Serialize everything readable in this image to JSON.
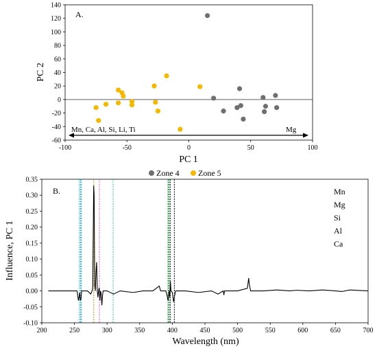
{
  "chart_data": [
    {
      "type": "scatter",
      "panel_label": "A.",
      "xlabel": "PC 1",
      "ylabel": "PC 2",
      "xlim": [
        -100,
        100
      ],
      "ylim": [
        -60,
        140
      ],
      "x_ticks": [
        -100,
        -50,
        0,
        50,
        100
      ],
      "y_ticks": [
        -60,
        -40,
        -20,
        0,
        20,
        40,
        60,
        80,
        100,
        120,
        140
      ],
      "grid": false,
      "legend_position": "bottom",
      "annotation_arrow": {
        "left_text": "Mn, Ca, Al, Si, Li, Ti",
        "right_text": "Mg"
      },
      "series": [
        {
          "name": "Zone 4",
          "color": "#6f6f6f",
          "points": [
            [
              15,
              124
            ],
            [
              20,
              2
            ],
            [
              28,
              -17
            ],
            [
              39,
              -12
            ],
            [
              41,
              16
            ],
            [
              42,
              -9
            ],
            [
              44,
              -29
            ],
            [
              60,
              3
            ],
            [
              61,
              -18
            ],
            [
              62,
              -10
            ],
            [
              70,
              6
            ],
            [
              71,
              -12
            ]
          ]
        },
        {
          "name": "Zone 5",
          "color": "#f5b800",
          "points": [
            [
              -75,
              -12
            ],
            [
              -73,
              -31
            ],
            [
              -67,
              -7
            ],
            [
              -57,
              14
            ],
            [
              -57,
              -5
            ],
            [
              -54,
              10
            ],
            [
              -53,
              5
            ],
            [
              -46,
              -3
            ],
            [
              -46,
              -8
            ],
            [
              -28,
              20
            ],
            [
              -27,
              -4
            ],
            [
              -25,
              -17
            ],
            [
              -18,
              35
            ],
            [
              -7,
              -44
            ],
            [
              9,
              19
            ]
          ]
        }
      ]
    },
    {
      "type": "line",
      "panel_label": "B.",
      "xlabel": "Wavelength (nm)",
      "ylabel": "Influence, PC 1",
      "xlim": [
        200,
        700
      ],
      "ylim": [
        -0.1,
        0.35
      ],
      "x_ticks": [
        200,
        250,
        300,
        350,
        400,
        450,
        500,
        550,
        600,
        650,
        700
      ],
      "y_tick_labels": [
        "0.35",
        "0.30",
        "0.25",
        "0.20",
        "0.15",
        "0.10",
        "0.05",
        "0.00",
        "-0.05",
        "-0.10"
      ],
      "grid": false,
      "legend_position": "top-right",
      "element_lines": [
        {
          "name": "Mn",
          "color": "#1ab3d6",
          "wavelengths": [
            257.6,
            259.4,
            260.6
          ]
        },
        {
          "name": "Mg",
          "color": "#c48a1c",
          "wavelengths": [
            279.6
          ]
        },
        {
          "name": "Si",
          "color": "#d45cc4",
          "wavelengths": [
            288.2
          ]
        },
        {
          "name": "Al",
          "color": "#2ec4a8",
          "wavelengths": [
            309.3
          ]
        },
        {
          "name": "Ca",
          "color": "#000000",
          "wavelengths": [
            396.8,
            403.1
          ]
        },
        {
          "name": "",
          "color": "#1a8a3a",
          "wavelengths": [
            393.4,
            394.4,
            396.2
          ]
        }
      ],
      "spectrum": [
        [
          210,
          0
        ],
        [
          254,
          0
        ],
        [
          255,
          -0.015
        ],
        [
          256,
          -0.03
        ],
        [
          257,
          -0.02
        ],
        [
          258,
          -0.005
        ],
        [
          259,
          -0.03
        ],
        [
          260,
          -0.025
        ],
        [
          261,
          0
        ],
        [
          270,
          0
        ],
        [
          275,
          -0.01
        ],
        [
          277,
          0
        ],
        [
          278,
          0.01
        ],
        [
          279.5,
          0.33
        ],
        [
          280.2,
          0.3
        ],
        [
          281,
          0.02
        ],
        [
          282,
          0
        ],
        [
          283,
          0.06
        ],
        [
          284,
          0.09
        ],
        [
          285,
          0
        ],
        [
          286,
          -0.02
        ],
        [
          287,
          0
        ],
        [
          288,
          0.01
        ],
        [
          289,
          -0.03
        ],
        [
          290,
          0
        ],
        [
          291,
          -0.01
        ],
        [
          292,
          -0.045
        ],
        [
          293,
          -0.015
        ],
        [
          294,
          0
        ],
        [
          300,
          0
        ],
        [
          310,
          -0.01
        ],
        [
          320,
          0
        ],
        [
          340,
          -0.005
        ],
        [
          355,
          0
        ],
        [
          370,
          0
        ],
        [
          380,
          0.015
        ],
        [
          382,
          0
        ],
        [
          390,
          0
        ],
        [
          392,
          -0.015
        ],
        [
          393.4,
          -0.03
        ],
        [
          394.4,
          -0.015
        ],
        [
          395,
          0
        ],
        [
          396.2,
          -0.02
        ],
        [
          397,
          0.03
        ],
        [
          398,
          0
        ],
        [
          400,
          -0.005
        ],
        [
          401,
          -0.02
        ],
        [
          402,
          -0.035
        ],
        [
          403,
          -0.02
        ],
        [
          405,
          0
        ],
        [
          420,
          0
        ],
        [
          440,
          -0.005
        ],
        [
          460,
          0
        ],
        [
          470,
          -0.01
        ],
        [
          478,
          0
        ],
        [
          479,
          -0.013
        ],
        [
          480,
          0
        ],
        [
          500,
          0
        ],
        [
          515,
          0.008
        ],
        [
          517,
          0.04
        ],
        [
          518,
          0.02
        ],
        [
          520,
          0
        ],
        [
          540,
          0
        ],
        [
          560,
          0.003
        ],
        [
          580,
          0
        ],
        [
          590,
          0.002
        ],
        [
          610,
          0
        ],
        [
          630,
          0.003
        ],
        [
          650,
          0
        ],
        [
          660,
          -0.002
        ],
        [
          672,
          0.003
        ],
        [
          700,
          0
        ]
      ]
    }
  ]
}
